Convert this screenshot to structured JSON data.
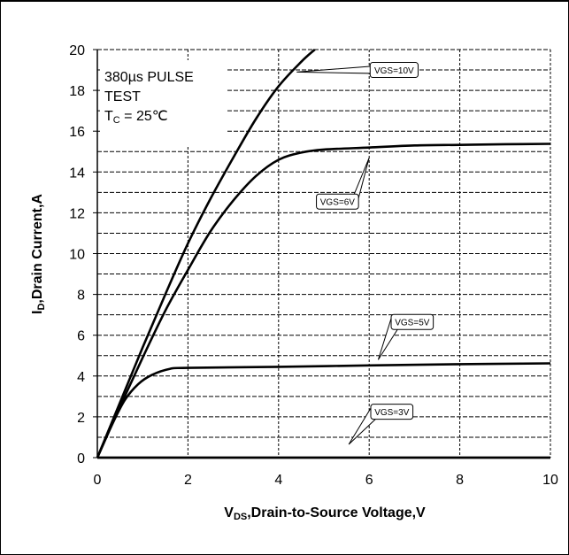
{
  "chart_data": {
    "type": "line",
    "title": "",
    "xlabel": {
      "main": "V",
      "sub": "DS",
      "rest": ",Drain-to-Source Voltage,V"
    },
    "ylabel": {
      "main": "I",
      "sub": "D",
      "rest": ",Drain Current,A"
    },
    "xlim": [
      0,
      10
    ],
    "ylim": [
      0,
      20
    ],
    "xticks": [
      "0",
      "2",
      "4",
      "6",
      "8",
      "10"
    ],
    "yticks": [
      "0",
      "2",
      "4",
      "6",
      "8",
      "10",
      "12",
      "14",
      "16",
      "18",
      "20"
    ],
    "grid": true,
    "annotation": {
      "line1": "380µs PULSE",
      "line2": "TEST",
      "line3_main": "T",
      "line3_sub": "C",
      "line3_rest": " = 25℃"
    },
    "series": [
      {
        "name": "VGS=10V",
        "points": [
          [
            0,
            0
          ],
          [
            0.5,
            2.7
          ],
          [
            1,
            5.4
          ],
          [
            1.5,
            8.0
          ],
          [
            2,
            10.5
          ],
          [
            2.5,
            12.7
          ],
          [
            3,
            14.7
          ],
          [
            3.5,
            16.6
          ],
          [
            4,
            18.2
          ],
          [
            4.5,
            19.4
          ],
          [
            4.8,
            20.0
          ]
        ]
      },
      {
        "name": "VGS=6V",
        "points": [
          [
            0,
            0
          ],
          [
            0.5,
            2.5
          ],
          [
            1,
            4.9
          ],
          [
            1.5,
            7.2
          ],
          [
            2,
            9.2
          ],
          [
            2.5,
            11.1
          ],
          [
            3,
            12.6
          ],
          [
            3.5,
            13.8
          ],
          [
            4,
            14.6
          ],
          [
            4.5,
            14.95
          ],
          [
            5,
            15.1
          ],
          [
            6,
            15.2
          ],
          [
            7,
            15.3
          ],
          [
            8,
            15.33
          ],
          [
            9,
            15.36
          ],
          [
            10,
            15.38
          ]
        ]
      },
      {
        "name": "VGS=5V",
        "points": [
          [
            0,
            0
          ],
          [
            0.3,
            1.5
          ],
          [
            0.6,
            2.8
          ],
          [
            0.9,
            3.6
          ],
          [
            1.2,
            4.05
          ],
          [
            1.6,
            4.35
          ],
          [
            2,
            4.4
          ],
          [
            4,
            4.45
          ],
          [
            6,
            4.52
          ],
          [
            8,
            4.58
          ],
          [
            10,
            4.62
          ]
        ]
      },
      {
        "name": "VGS=3V",
        "points": [
          [
            0,
            0
          ],
          [
            10,
            0
          ]
        ]
      }
    ],
    "callouts": [
      {
        "label": "VGS=10V",
        "series": 0,
        "tip": [
          4.4,
          18.9
        ],
        "box": [
          6.55,
          19.0
        ]
      },
      {
        "label": "VGS=6V",
        "series": 1,
        "tip": [
          6.0,
          14.7
        ],
        "box": [
          5.3,
          12.55
        ]
      },
      {
        "label": "VGS=5V",
        "series": 2,
        "tip": [
          6.2,
          4.8
        ],
        "box": [
          6.95,
          6.65
        ]
      },
      {
        "label": "VGS=3V",
        "series": 3,
        "tip": [
          5.55,
          0.65
        ],
        "box": [
          6.5,
          2.25
        ]
      }
    ]
  }
}
